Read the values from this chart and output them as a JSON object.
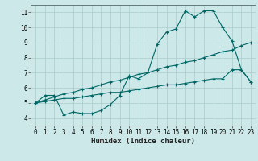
{
  "title": "",
  "xlabel": "Humidex (Indice chaleur)",
  "ylabel": "",
  "background_color": "#cce8e8",
  "grid_color": "#aacccc",
  "line_color": "#006666",
  "xlim": [
    -0.5,
    23.5
  ],
  "ylim": [
    3.5,
    11.5
  ],
  "xticks": [
    0,
    1,
    2,
    3,
    4,
    5,
    6,
    7,
    8,
    9,
    10,
    11,
    12,
    13,
    14,
    15,
    16,
    17,
    18,
    19,
    20,
    21,
    22,
    23
  ],
  "yticks": [
    4,
    5,
    6,
    7,
    8,
    9,
    10,
    11
  ],
  "curve1_x": [
    0,
    1,
    2,
    3,
    4,
    5,
    6,
    7,
    8,
    9,
    10,
    11,
    12,
    13,
    14,
    15,
    16,
    17,
    18,
    19,
    20,
    21,
    22,
    23
  ],
  "curve1_y": [
    5.0,
    5.5,
    5.5,
    4.2,
    4.4,
    4.3,
    4.3,
    4.5,
    4.9,
    5.5,
    6.8,
    6.6,
    7.0,
    8.9,
    9.7,
    9.9,
    11.1,
    10.7,
    11.1,
    11.1,
    10.0,
    9.1,
    7.2,
    6.4
  ],
  "curve2_x": [
    0,
    1,
    2,
    3,
    4,
    5,
    6,
    7,
    8,
    9,
    10,
    11,
    12,
    13,
    14,
    15,
    16,
    17,
    18,
    19,
    20,
    21,
    22,
    23
  ],
  "curve2_y": [
    5.0,
    5.2,
    5.4,
    5.6,
    5.7,
    5.9,
    6.0,
    6.2,
    6.4,
    6.5,
    6.7,
    6.9,
    7.0,
    7.2,
    7.4,
    7.5,
    7.7,
    7.8,
    8.0,
    8.2,
    8.4,
    8.5,
    8.8,
    9.0
  ],
  "curve3_x": [
    0,
    1,
    2,
    3,
    4,
    5,
    6,
    7,
    8,
    9,
    10,
    11,
    12,
    13,
    14,
    15,
    16,
    17,
    18,
    19,
    20,
    21,
    22,
    23
  ],
  "curve3_y": [
    5.0,
    5.1,
    5.2,
    5.3,
    5.3,
    5.4,
    5.5,
    5.6,
    5.7,
    5.7,
    5.8,
    5.9,
    6.0,
    6.1,
    6.2,
    6.2,
    6.3,
    6.4,
    6.5,
    6.6,
    6.6,
    7.2,
    7.2,
    6.4
  ],
  "tick_fontsize": 5.5,
  "xlabel_fontsize": 6.5
}
